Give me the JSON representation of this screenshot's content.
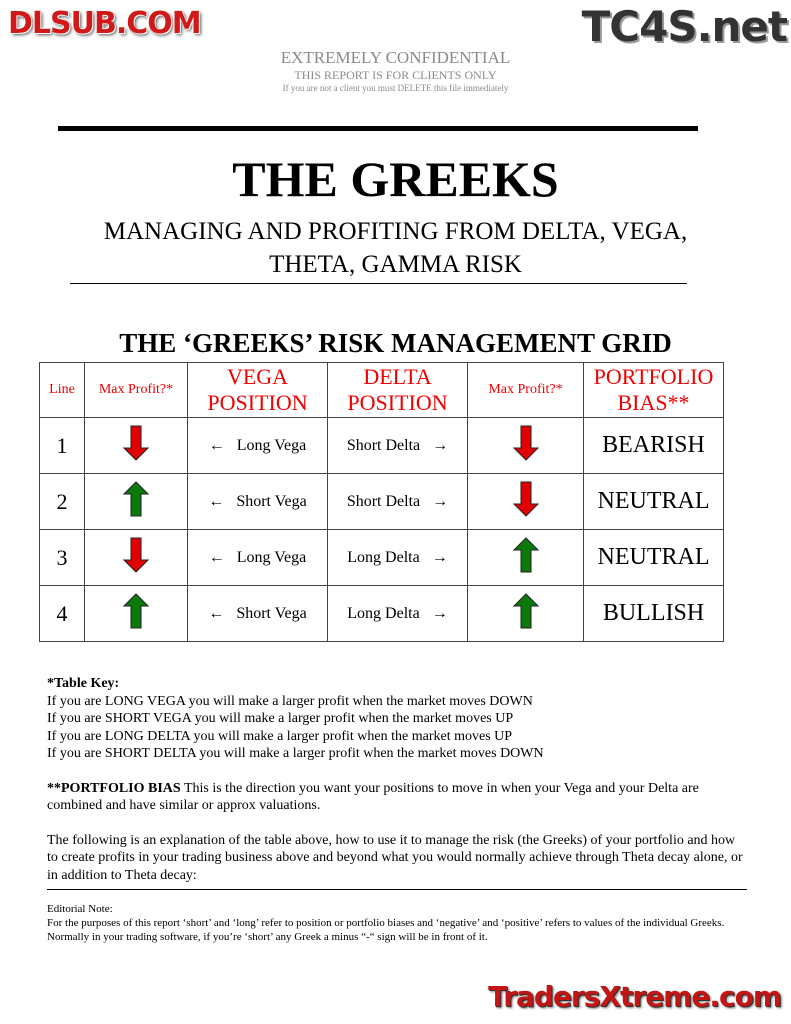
{
  "watermarks": {
    "top_right": "TC4S.net",
    "center": "DLSUB.COM",
    "bottom_right": "TradersXtreme.com"
  },
  "confidential": {
    "line1": "EXTREMELY CONFIDENTIAL",
    "line2": "THIS REPORT IS FOR CLIENTS ONLY",
    "line3": "If you are not a client you must DELETE this file immediately"
  },
  "title": "THE GREEKS",
  "subtitle_line1": "MANAGING AND PROFITING FROM DELTA, VEGA,",
  "subtitle_line2": "THETA, GAMMA RISK",
  "grid_title": "THE ‘GREEKS’ RISK MANAGEMENT GRID",
  "table": {
    "headers": {
      "line": "Line",
      "max_profit_1": "Max Profit?*",
      "vega_1": "VEGA",
      "vega_2": "POSITION",
      "delta_1": "DELTA",
      "delta_2": "POSITION",
      "max_profit_2": "Max Profit?*",
      "bias_1": "PORTFOLIO",
      "bias_2": "BIAS**"
    },
    "rows": [
      {
        "line": "1",
        "left": "down",
        "vega": "Long Vega",
        "delta": "Short Delta",
        "right": "down",
        "bias": "BEARISH"
      },
      {
        "line": "2",
        "left": "up",
        "vega": "Short Vega",
        "delta": "Short Delta",
        "right": "down",
        "bias": "NEUTRAL"
      },
      {
        "line": "3",
        "left": "down",
        "vega": "Long Vega",
        "delta": "Long Delta",
        "right": "up",
        "bias": "NEUTRAL"
      },
      {
        "line": "4",
        "left": "up",
        "vega": "Short Vega",
        "delta": "Long Delta",
        "right": "up",
        "bias": "BULLISH"
      }
    ],
    "colors": {
      "up": "#0a7a0a",
      "down": "#e00000",
      "header": "#e00000"
    }
  },
  "key": {
    "title": "*Table Key:",
    "lines": [
      "If you are LONG VEGA you will make a larger profit when the market moves DOWN",
      "If you are SHORT VEGA you will make a larger profit when the market moves UP",
      "If you are LONG DELTA you will make a larger profit when the market moves UP",
      "If you are SHORT DELTA you will make a larger profit when the market moves DOWN"
    ]
  },
  "bias_note": {
    "bold": "**PORTFOLIO BIAS",
    "text": " This is the direction you want your positions to move in when your Vega and your Delta are combined and have similar or approx valuations."
  },
  "explanation": "The following is an explanation of the table above, how to use it to manage the risk (the Greeks) of your portfolio and how to create profits in your trading business above and beyond what you would normally achieve through Theta decay alone, or in addition to Theta decay:",
  "editorial": {
    "title": "Editorial Note:",
    "text": "For the purposes of this report ‘short’ and ‘long’ refer to position or portfolio biases and ‘negative’ and ‘positive’ refers to values of the individual Greeks.  Normally in your trading software, if you’re ‘short’ any Greek a minus “-“ sign will be in front of it."
  }
}
